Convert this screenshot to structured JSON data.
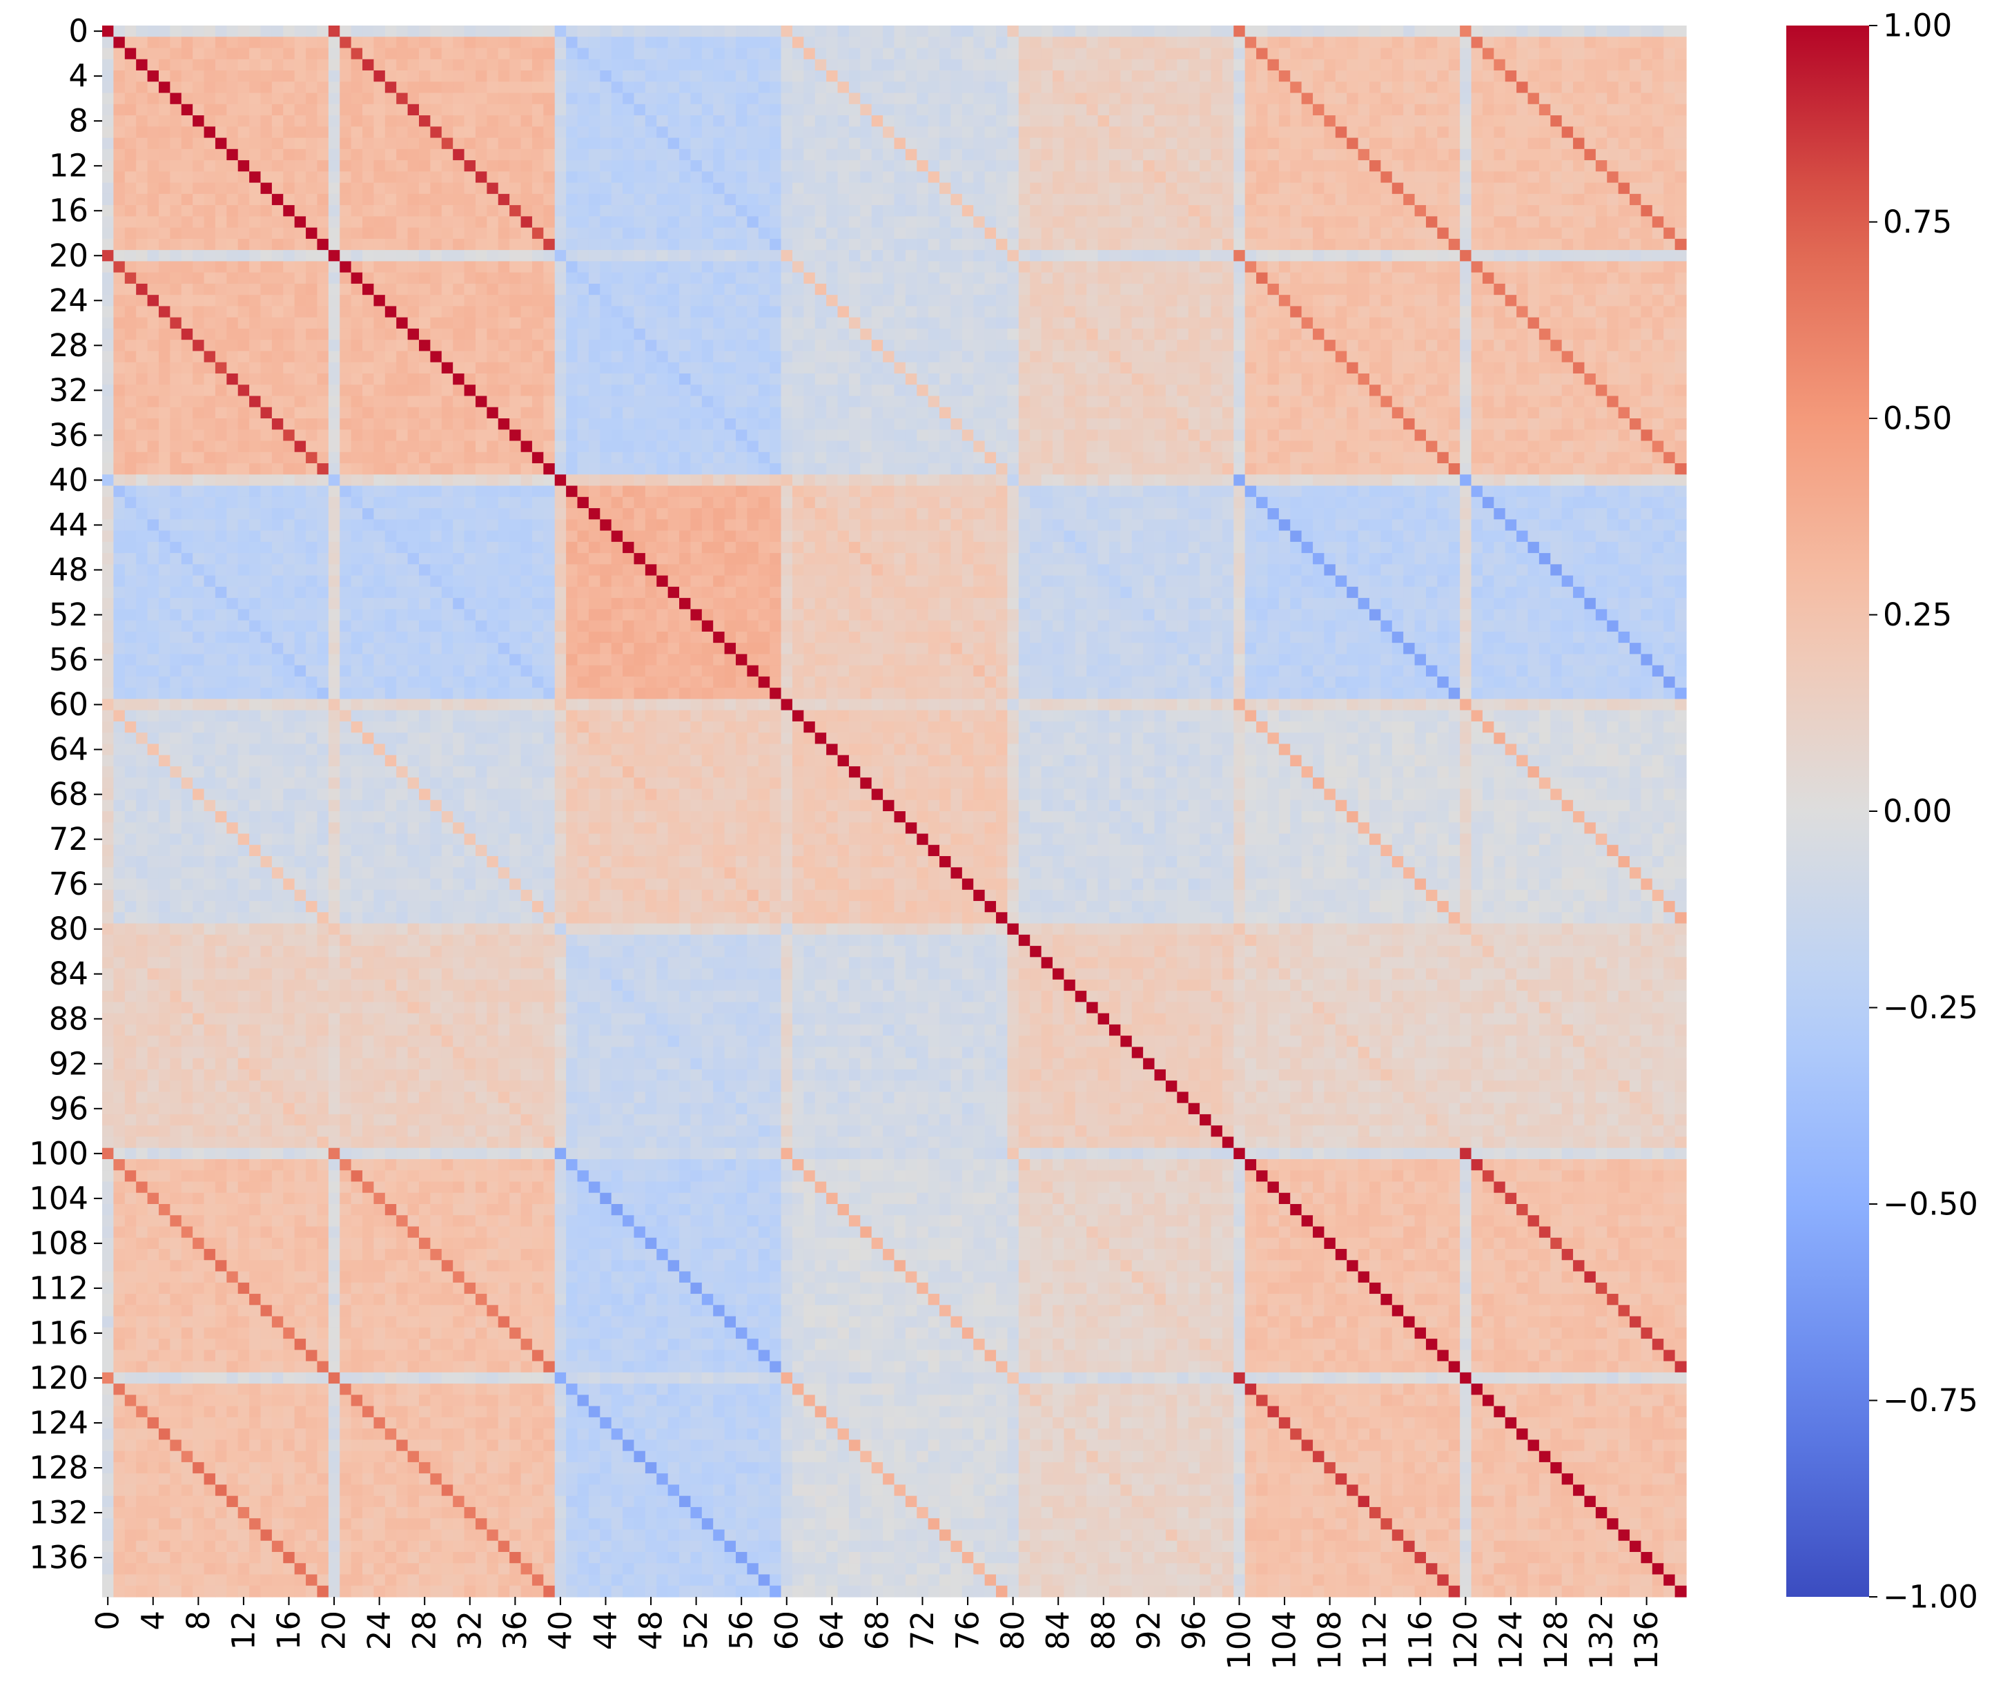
{
  "chart_data": {
    "type": "heatmap",
    "title": "",
    "xlabel": "",
    "ylabel": "",
    "n_rows": 140,
    "n_cols": 140,
    "x_tick_labels": [
      "0",
      "4",
      "8",
      "12",
      "16",
      "20",
      "24",
      "28",
      "32",
      "36",
      "40",
      "44",
      "48",
      "52",
      "56",
      "60",
      "64",
      "68",
      "72",
      "76",
      "80",
      "84",
      "88",
      "92",
      "96",
      "100",
      "104",
      "108",
      "112",
      "116",
      "120",
      "124",
      "128",
      "132",
      "136"
    ],
    "y_tick_labels": [
      "0",
      "4",
      "8",
      "12",
      "16",
      "20",
      "24",
      "28",
      "32",
      "36",
      "40",
      "44",
      "48",
      "52",
      "56",
      "60",
      "64",
      "68",
      "72",
      "76",
      "80",
      "84",
      "88",
      "92",
      "96",
      "100",
      "104",
      "108",
      "112",
      "116",
      "120",
      "124",
      "128",
      "132",
      "136"
    ],
    "colormap": "coolwarm",
    "colorbar": {
      "range": [
        -1.0,
        1.0
      ],
      "tick_labels": [
        "1.00",
        "0.75",
        "0.50",
        "0.25",
        "0.00",
        "−0.25",
        "−0.50",
        "−0.75",
        "−1.00"
      ],
      "tick_values": [
        1.0,
        0.75,
        0.5,
        0.25,
        0.0,
        -0.25,
        -0.5,
        -0.75,
        -1.0
      ]
    },
    "structure": {
      "cycle_groups": [
        {
          "rows": [
            0,
            40
          ],
          "offsets": [
            0,
            20
          ]
        },
        {
          "rows": [
            40,
            60
          ],
          "offsets": [
            0
          ]
        },
        {
          "rows": [
            60,
            80
          ],
          "offsets": [
            0
          ]
        },
        {
          "rows": [
            80,
            100
          ],
          "offsets": [
            0
          ]
        },
        {
          "rows": [
            100,
            140
          ],
          "offsets": [
            0,
            20
          ]
        }
      ],
      "block_correlations": {
        "A": {
          "A": 0.3,
          "B": -0.22,
          "C": -0.08,
          "D": 0.14,
          "E": 0.26
        },
        "B": {
          "A": -0.22,
          "B": 0.35,
          "C": 0.18,
          "D": -0.14,
          "E": -0.22
        },
        "C": {
          "A": -0.08,
          "B": 0.18,
          "C": 0.2,
          "D": -0.08,
          "E": -0.04
        },
        "D": {
          "A": 0.14,
          "B": -0.14,
          "C": -0.08,
          "D": 0.17,
          "E": 0.1
        },
        "E": {
          "A": 0.26,
          "B": -0.22,
          "C": -0.04,
          "D": 0.1,
          "E": 0.26
        }
      },
      "diagonal_value": 1.0,
      "offset_diagonal_strength": {
        "A_offset_20": 0.85,
        "A_to_E_offsets_100_120": 0.65,
        "B_to_E_offset_80": -0.6,
        "C_to_E_offset_40": 0.35,
        "B_to_C_offset_20": 0.25
      }
    },
    "grid": false,
    "legend": "none"
  }
}
